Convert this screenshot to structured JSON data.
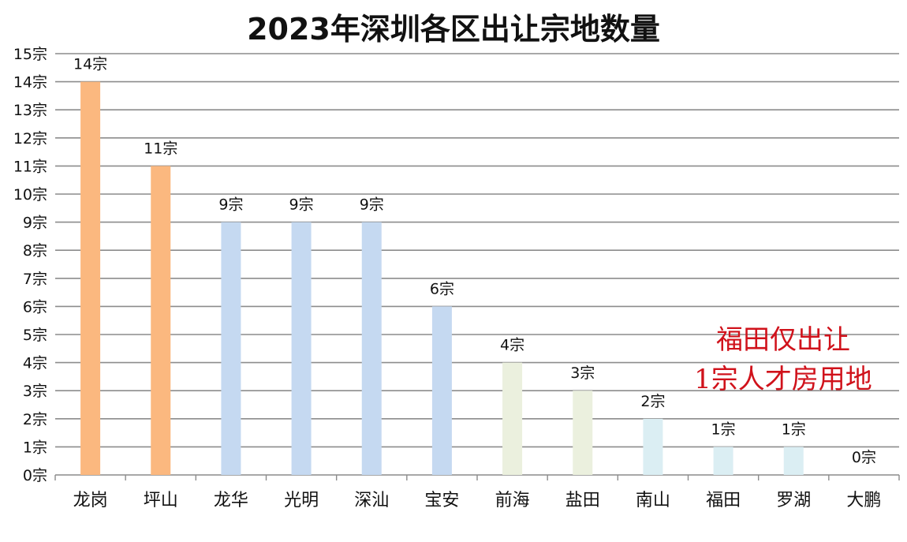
{
  "chart_data": {
    "type": "bar",
    "title": "2023年深圳各区出让宗地数量",
    "categories": [
      "龙岗",
      "坪山",
      "龙华",
      "光明",
      "深汕",
      "宝安",
      "前海",
      "盐田",
      "南山",
      "福田",
      "罗湖",
      "大鹏"
    ],
    "values": [
      14,
      11,
      9,
      9,
      9,
      6,
      4,
      3,
      2,
      1,
      1,
      0
    ],
    "data_labels": [
      "14宗",
      "11宗",
      "9宗",
      "9宗",
      "9宗",
      "6宗",
      "4宗",
      "3宗",
      "2宗",
      "1宗",
      "1宗",
      "0宗"
    ],
    "bar_colors": [
      "#fbb87f",
      "#fbb87f",
      "#c5d9f1",
      "#c5d9f1",
      "#c5d9f1",
      "#c5d9f1",
      "#ebf0de",
      "#ebf0de",
      "#dbeef3",
      "#dbeef3",
      "#dbeef3",
      "#dbeef3"
    ],
    "ylim": [
      0,
      15
    ],
    "y_ticks": [
      "0宗",
      "1宗",
      "2宗",
      "3宗",
      "4宗",
      "5宗",
      "6宗",
      "7宗",
      "8宗",
      "9宗",
      "10宗",
      "11宗",
      "12宗",
      "13宗",
      "14宗",
      "15宗"
    ],
    "xlabel": "",
    "ylabel": "",
    "grid": true,
    "annotation": {
      "lines": [
        "福田仅出让",
        "1宗人才房用地"
      ],
      "color": "#d0121b"
    }
  }
}
